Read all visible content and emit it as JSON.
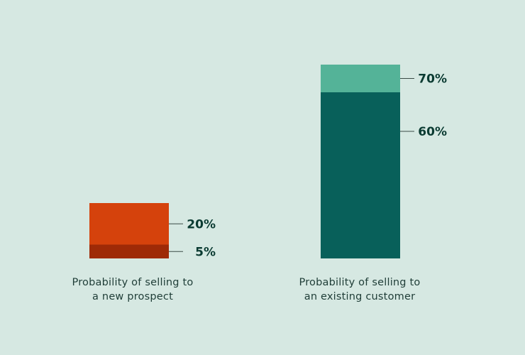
{
  "chart_data": {
    "type": "bar",
    "title": "",
    "xlabel": "",
    "ylabel": "",
    "ylim": [
      0,
      70
    ],
    "grid": false,
    "legend": "none",
    "categories": [
      [
        "Probability of selling to",
        "a new prospect"
      ],
      [
        "Probability of selling to",
        "an existing customer"
      ]
    ],
    "bars": [
      {
        "segments": [
          {
            "value": 5,
            "label": "5%",
            "color": "#9e2a07"
          },
          {
            "value": 20,
            "label": "20%",
            "color": "#d5420c"
          }
        ]
      },
      {
        "segments": [
          {
            "value": 60,
            "label": "60%",
            "color": "#08605a"
          },
          {
            "value": 70,
            "label": "70%",
            "color": "#54b398"
          }
        ]
      }
    ]
  },
  "colors": {
    "background": "#d6e8e2",
    "text_dark": "#0b3b32",
    "leader_line": "#3a4a46"
  }
}
